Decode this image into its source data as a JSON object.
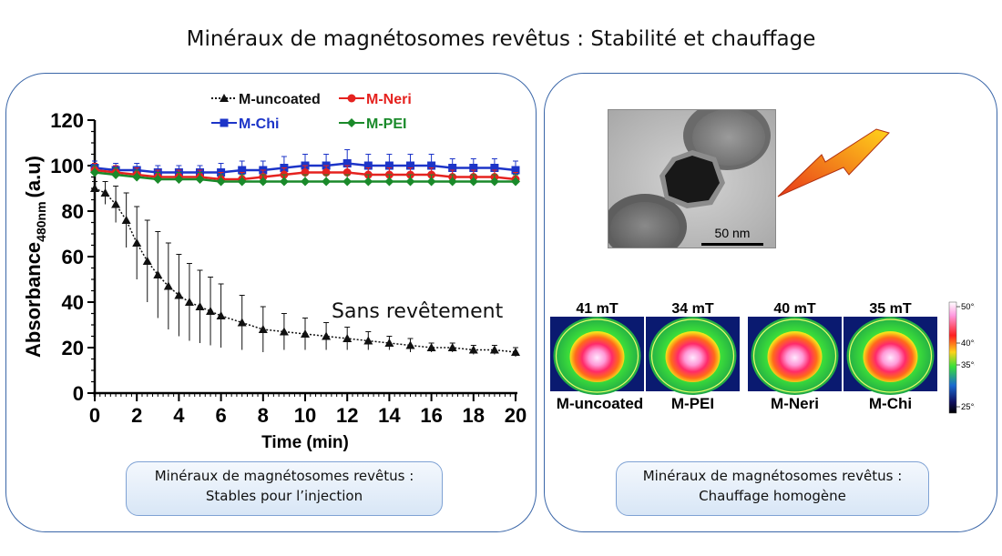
{
  "page": {
    "title": "Minéraux de magnétosomes revêtus :  Stabilité et chauffage"
  },
  "left_panel": {
    "annotation": "Sans revêtement",
    "caption_line1": "Minéraux de magnétosomes revêtus :",
    "caption_line2": "Stables pour l’injection"
  },
  "right_panel": {
    "scale_bar": "50 nm",
    "caption_line1": "Minéraux de magnétosomes revêtus :",
    "caption_line2": "Chauffage homogène",
    "thermal_images": [
      {
        "field": "41 mT",
        "sample": "M-uncoated"
      },
      {
        "field": "34 mT",
        "sample": "M-PEI"
      },
      {
        "field": "40 mT",
        "sample": "M-Neri"
      },
      {
        "field": "35 mT",
        "sample": "M-Chi"
      }
    ],
    "colorbar_labels": [
      "50°C",
      "40°C",
      "35°C",
      "25°C"
    ],
    "colors": {
      "bolt_top": "#ffd21a",
      "bolt_bottom": "#e8381a"
    }
  },
  "chart_data": {
    "type": "line",
    "title": "",
    "xlabel": "Time (min)",
    "ylabel_main": "Absorbance",
    "ylabel_sub": "480nm",
    "ylabel_unit": "(a.u)",
    "xlim": [
      0,
      20
    ],
    "ylim": [
      0,
      120
    ],
    "xticks": [
      0,
      2,
      4,
      6,
      8,
      10,
      12,
      14,
      16,
      18,
      20
    ],
    "yticks": [
      0,
      20,
      40,
      60,
      80,
      100,
      120
    ],
    "legend_position": "top",
    "grid": false,
    "series": [
      {
        "name": "M-uncoated",
        "color": "#111111",
        "marker": "triangle",
        "line": "dotted",
        "x": [
          0,
          0.5,
          1,
          1.5,
          2,
          2.5,
          3,
          3.5,
          4,
          4.5,
          5,
          5.5,
          6,
          7,
          8,
          9,
          10,
          11,
          12,
          13,
          14,
          15,
          16,
          17,
          18,
          19,
          20
        ],
        "y": [
          90,
          88,
          83,
          76,
          66,
          58,
          52,
          47,
          43,
          40,
          38,
          36,
          34,
          31,
          28,
          27,
          26,
          25,
          24,
          23,
          22,
          21,
          20,
          20,
          19,
          19,
          18
        ],
        "err": [
          3,
          5,
          8,
          12,
          16,
          18,
          19,
          19,
          18,
          17,
          16,
          15,
          14,
          12,
          10,
          8,
          7,
          6,
          5,
          4,
          3,
          3,
          2,
          2,
          2,
          2,
          2
        ]
      },
      {
        "name": "M-Neri",
        "color": "#e5221f",
        "marker": "circle",
        "line": "solid",
        "x": [
          0,
          1,
          2,
          3,
          4,
          5,
          6,
          7,
          8,
          9,
          10,
          11,
          12,
          13,
          14,
          15,
          16,
          17,
          18,
          19,
          20
        ],
        "y": [
          98,
          97,
          96,
          95,
          95,
          95,
          94,
          94,
          95,
          96,
          97,
          97,
          97,
          96,
          96,
          96,
          96,
          95,
          95,
          95,
          94
        ],
        "err": [
          3,
          3,
          3,
          3,
          3,
          3,
          3,
          3,
          3,
          3,
          3,
          3,
          3,
          3,
          3,
          3,
          3,
          3,
          3,
          3,
          3
        ]
      },
      {
        "name": "M-Chi",
        "color": "#1c34c8",
        "marker": "square",
        "line": "solid",
        "x": [
          0,
          1,
          2,
          3,
          4,
          5,
          6,
          7,
          8,
          9,
          10,
          11,
          12,
          13,
          14,
          15,
          16,
          17,
          18,
          19,
          20
        ],
        "y": [
          99,
          98,
          98,
          97,
          97,
          97,
          97,
          98,
          98,
          99,
          100,
          100,
          101,
          100,
          100,
          100,
          100,
          99,
          99,
          99,
          98
        ],
        "err": [
          3,
          3,
          3,
          3,
          3,
          3,
          4,
          4,
          4,
          5,
          5,
          5,
          6,
          5,
          5,
          5,
          5,
          4,
          4,
          4,
          4
        ]
      },
      {
        "name": "M-PEI",
        "color": "#1a8a2a",
        "marker": "diamond",
        "line": "solid",
        "x": [
          0,
          1,
          2,
          3,
          4,
          5,
          6,
          7,
          8,
          9,
          10,
          11,
          12,
          13,
          14,
          15,
          16,
          17,
          18,
          19,
          20
        ],
        "y": [
          97,
          96,
          95,
          94,
          94,
          94,
          93,
          93,
          93,
          93,
          93,
          93,
          93,
          93,
          93,
          93,
          93,
          93,
          93,
          93,
          93
        ],
        "err": [
          3,
          3,
          3,
          3,
          3,
          3,
          3,
          3,
          3,
          3,
          3,
          3,
          3,
          3,
          3,
          3,
          3,
          3,
          3,
          3,
          3
        ]
      }
    ]
  }
}
